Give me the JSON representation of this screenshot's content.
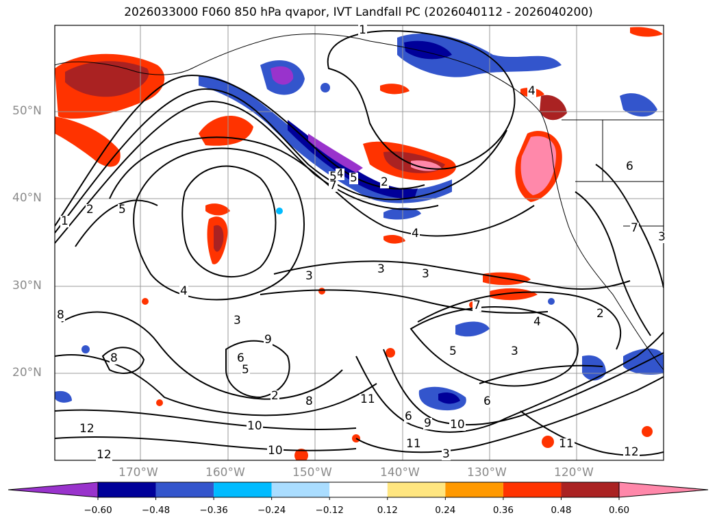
{
  "title": "2026033000 F060 850 hPa qvapor, IVT Landfall PC (2026040112 - 2026040200)",
  "map": {
    "lat_labels": [
      "50°N",
      "40°N",
      "30°N",
      "20°N"
    ],
    "lon_labels": [
      "170°W",
      "160°W",
      "150°W",
      "140°W",
      "130°W",
      "120°W"
    ],
    "contour_labels": [
      "1",
      "1",
      "2",
      "5",
      "4",
      "5",
      "2",
      "3",
      "3",
      "4",
      "3",
      "4",
      "7",
      "8",
      "8",
      "3",
      "9",
      "6",
      "5",
      "2",
      "8",
      "11",
      "9",
      "6",
      "5",
      "3",
      "6",
      "10",
      "11",
      "10",
      "12",
      "12",
      "10",
      "11",
      "12",
      "3",
      "2",
      "7",
      "6",
      "3",
      "5",
      "4",
      "4",
      "7"
    ]
  },
  "colorbar": {
    "ticks": [
      "−0.60",
      "−0.48",
      "−0.36",
      "−0.24",
      "−0.12",
      "0.12",
      "0.24",
      "0.36",
      "0.48",
      "0.60"
    ],
    "colors": [
      "#9933cc",
      "#000099",
      "#3355cc",
      "#00bbff",
      "#aaddff",
      "#ffffff",
      "#ffe680",
      "#ff9900",
      "#ff3300",
      "#aa2222",
      "#ff88aa"
    ],
    "extend_min_color": "#9933cc",
    "extend_max_color": "#ff88aa"
  }
}
